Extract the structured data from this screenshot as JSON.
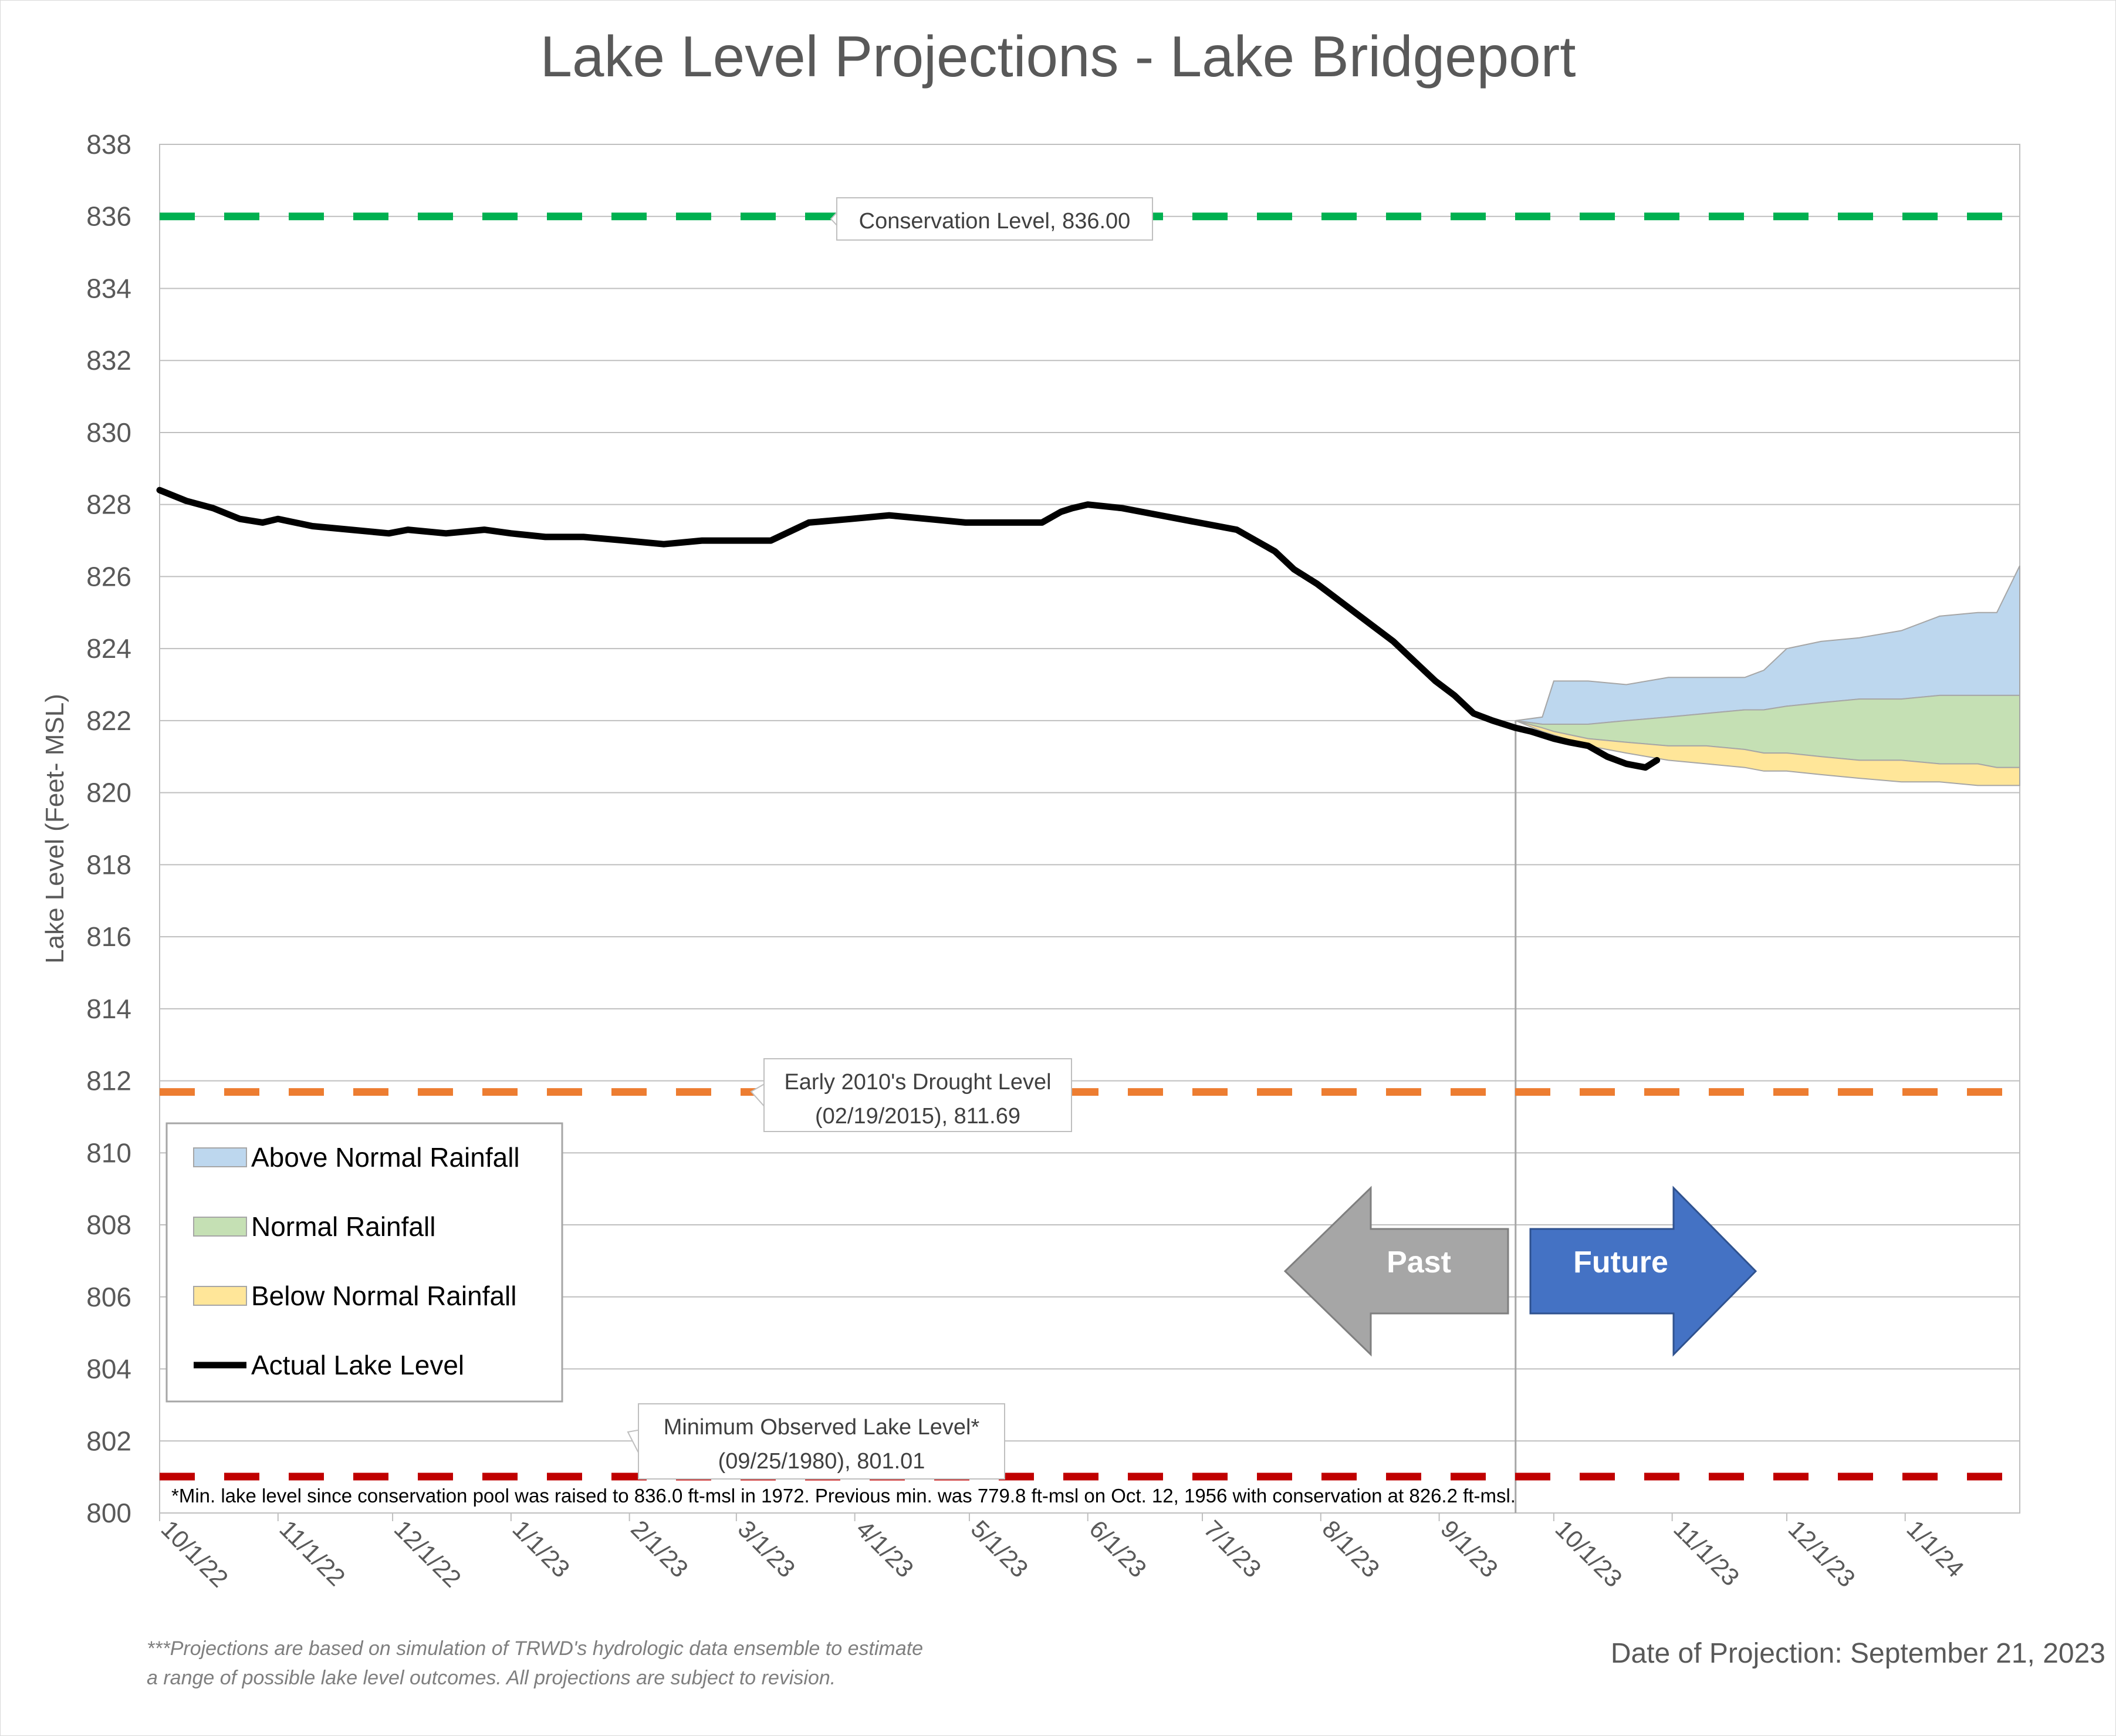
{
  "page": {
    "title": "Lake Level Projections - Lake Bridgeport",
    "footnote_line1": "***Projections are based on simulation of TRWD's hydrologic data ensemble to estimate",
    "footnote_line2": "a range of possible lake level outcomes.  All projections are subject to revision.",
    "projection_date": "Date of Projection: September 21, 2023"
  },
  "chart_data": {
    "type": "area",
    "title": "Lake Level Projections - Lake Bridgeport",
    "ylabel": "Lake Level (Feet- MSL)",
    "xlabel": "",
    "ylim": [
      800,
      838
    ],
    "y_ticks": [
      800,
      802,
      804,
      806,
      808,
      810,
      812,
      814,
      816,
      818,
      820,
      822,
      824,
      826,
      828,
      830,
      832,
      834,
      836,
      838
    ],
    "xlim": [
      "2022-10-01",
      "2024-01-31"
    ],
    "x_ticks": [
      {
        "date": "2022-10-01",
        "label": "10/1/22"
      },
      {
        "date": "2022-11-01",
        "label": "11/1/22"
      },
      {
        "date": "2022-12-01",
        "label": "12/1/22"
      },
      {
        "date": "2023-01-01",
        "label": "1/1/23"
      },
      {
        "date": "2023-02-01",
        "label": "2/1/23"
      },
      {
        "date": "2023-03-01",
        "label": "3/1/23"
      },
      {
        "date": "2023-04-01",
        "label": "4/1/23"
      },
      {
        "date": "2023-05-01",
        "label": "5/1/23"
      },
      {
        "date": "2023-06-01",
        "label": "6/1/23"
      },
      {
        "date": "2023-07-01",
        "label": "7/1/23"
      },
      {
        "date": "2023-08-01",
        "label": "8/1/23"
      },
      {
        "date": "2023-09-01",
        "label": "9/1/23"
      },
      {
        "date": "2023-10-01",
        "label": "10/1/23"
      },
      {
        "date": "2023-11-01",
        "label": "11/1/23"
      },
      {
        "date": "2023-12-01",
        "label": "12/1/23"
      },
      {
        "date": "2024-01-01",
        "label": "1/1/24"
      }
    ],
    "grid": true,
    "legend_position": "lower-left",
    "projection_date": "2023-09-21",
    "reference_lines": [
      {
        "value": 836.0,
        "color": "#00b050",
        "label": "Conservation Level, 836.00"
      },
      {
        "value": 811.69,
        "color": "#ed7d31",
        "label_line1": "Early 2010's Drought Level",
        "label_line2": "(02/19/2015), 811.69"
      },
      {
        "value": 801.01,
        "color": "#c00000",
        "label_line1": "Minimum Observed Lake Level*",
        "label_line2": "(09/25/1980), 801.01"
      }
    ],
    "min_level_note": "*Min. lake level since conservation pool was raised to 836.0 ft-msl in 1972.  Previous min. was 779.8 ft-msl on Oct. 12, 1956 with conservation at 826.2 ft-msl.",
    "arrows": {
      "past": "Past",
      "future": "Future"
    },
    "series": [
      {
        "name": "Above Normal Rainfall",
        "kind": "band",
        "color": "#bdd7ee",
        "x": [
          "2023-09-21",
          "2023-09-28",
          "2023-10-01",
          "2023-10-10",
          "2023-10-20",
          "2023-10-31",
          "2023-11-10",
          "2023-11-20",
          "2023-11-25",
          "2023-12-01",
          "2023-12-10",
          "2023-12-20",
          "2023-12-31",
          "2024-01-10",
          "2024-01-20",
          "2024-01-25",
          "2024-01-31"
        ],
        "upper": [
          822.0,
          822.1,
          823.1,
          823.1,
          823.0,
          823.2,
          823.2,
          823.2,
          823.4,
          824.0,
          824.2,
          824.3,
          824.5,
          824.9,
          825.0,
          825.0,
          826.3
        ],
        "lower": [
          822.0,
          821.9,
          821.9,
          821.9,
          822.0,
          822.1,
          822.2,
          822.3,
          822.3,
          822.4,
          822.5,
          822.6,
          822.6,
          822.7,
          822.7,
          822.7,
          822.7
        ]
      },
      {
        "name": "Normal Rainfall",
        "kind": "band",
        "color": "#c5e0b4",
        "x": [
          "2023-09-21",
          "2023-09-28",
          "2023-10-01",
          "2023-10-10",
          "2023-10-20",
          "2023-10-31",
          "2023-11-10",
          "2023-11-20",
          "2023-11-25",
          "2023-12-01",
          "2023-12-10",
          "2023-12-20",
          "2023-12-31",
          "2024-01-10",
          "2024-01-20",
          "2024-01-25",
          "2024-01-31"
        ],
        "upper": [
          822.0,
          821.9,
          821.9,
          821.9,
          822.0,
          822.1,
          822.2,
          822.3,
          822.3,
          822.4,
          822.5,
          822.6,
          822.6,
          822.7,
          822.7,
          822.7,
          822.7
        ],
        "lower": [
          822.0,
          821.8,
          821.7,
          821.5,
          821.4,
          821.3,
          821.3,
          821.2,
          821.1,
          821.1,
          821.0,
          820.9,
          820.9,
          820.8,
          820.8,
          820.7,
          820.7
        ]
      },
      {
        "name": "Below Normal Rainfall",
        "kind": "band",
        "color": "#ffe699",
        "x": [
          "2023-09-21",
          "2023-09-28",
          "2023-10-01",
          "2023-10-10",
          "2023-10-20",
          "2023-10-31",
          "2023-11-10",
          "2023-11-20",
          "2023-11-25",
          "2023-12-01",
          "2023-12-10",
          "2023-12-20",
          "2023-12-31",
          "2024-01-10",
          "2024-01-20",
          "2024-01-25",
          "2024-01-31"
        ],
        "upper": [
          822.0,
          821.8,
          821.7,
          821.5,
          821.4,
          821.3,
          821.3,
          821.2,
          821.1,
          821.1,
          821.0,
          820.9,
          820.9,
          820.8,
          820.8,
          820.7,
          820.7
        ],
        "lower": [
          822.0,
          821.7,
          821.6,
          821.3,
          821.1,
          820.9,
          820.8,
          820.7,
          820.6,
          820.6,
          820.5,
          820.4,
          820.3,
          820.3,
          820.2,
          820.2,
          820.2
        ]
      },
      {
        "name": "Actual Lake Level",
        "kind": "line",
        "color": "#000000",
        "x": [
          "2022-10-01",
          "2022-10-08",
          "2022-10-15",
          "2022-10-22",
          "2022-10-28",
          "2022-11-01",
          "2022-11-10",
          "2022-11-20",
          "2022-11-30",
          "2022-12-05",
          "2022-12-15",
          "2022-12-25",
          "2023-01-01",
          "2023-01-10",
          "2023-01-20",
          "2023-01-31",
          "2023-02-10",
          "2023-02-20",
          "2023-02-28",
          "2023-03-05",
          "2023-03-10",
          "2023-03-20",
          "2023-03-31",
          "2023-04-10",
          "2023-04-20",
          "2023-04-30",
          "2023-05-10",
          "2023-05-20",
          "2023-05-25",
          "2023-05-28",
          "2023-06-01",
          "2023-06-10",
          "2023-06-20",
          "2023-06-30",
          "2023-07-10",
          "2023-07-15",
          "2023-07-20",
          "2023-07-25",
          "2023-07-31",
          "2023-08-05",
          "2023-08-10",
          "2023-08-15",
          "2023-08-20",
          "2023-08-25",
          "2023-08-31",
          "2023-09-05",
          "2023-09-10",
          "2023-09-15",
          "2023-09-21",
          "2023-09-25",
          "2023-10-01",
          "2023-10-05",
          "2023-10-10",
          "2023-10-15",
          "2023-10-20",
          "2023-10-25",
          "2023-10-28"
        ],
        "y": [
          828.4,
          828.1,
          827.9,
          827.6,
          827.5,
          827.6,
          827.4,
          827.3,
          827.2,
          827.3,
          827.2,
          827.3,
          827.2,
          827.1,
          827.1,
          827.0,
          826.9,
          827.0,
          827.0,
          827.0,
          827.0,
          827.5,
          827.6,
          827.7,
          827.6,
          827.5,
          827.5,
          827.5,
          827.8,
          827.9,
          828.0,
          827.9,
          827.7,
          827.5,
          827.3,
          827.0,
          826.7,
          826.2,
          825.8,
          825.4,
          825.0,
          824.6,
          824.2,
          823.7,
          823.1,
          822.7,
          822.2,
          822.0,
          821.8,
          821.7,
          821.5,
          821.4,
          821.3,
          821.0,
          820.8,
          820.7,
          820.9
        ]
      }
    ]
  }
}
